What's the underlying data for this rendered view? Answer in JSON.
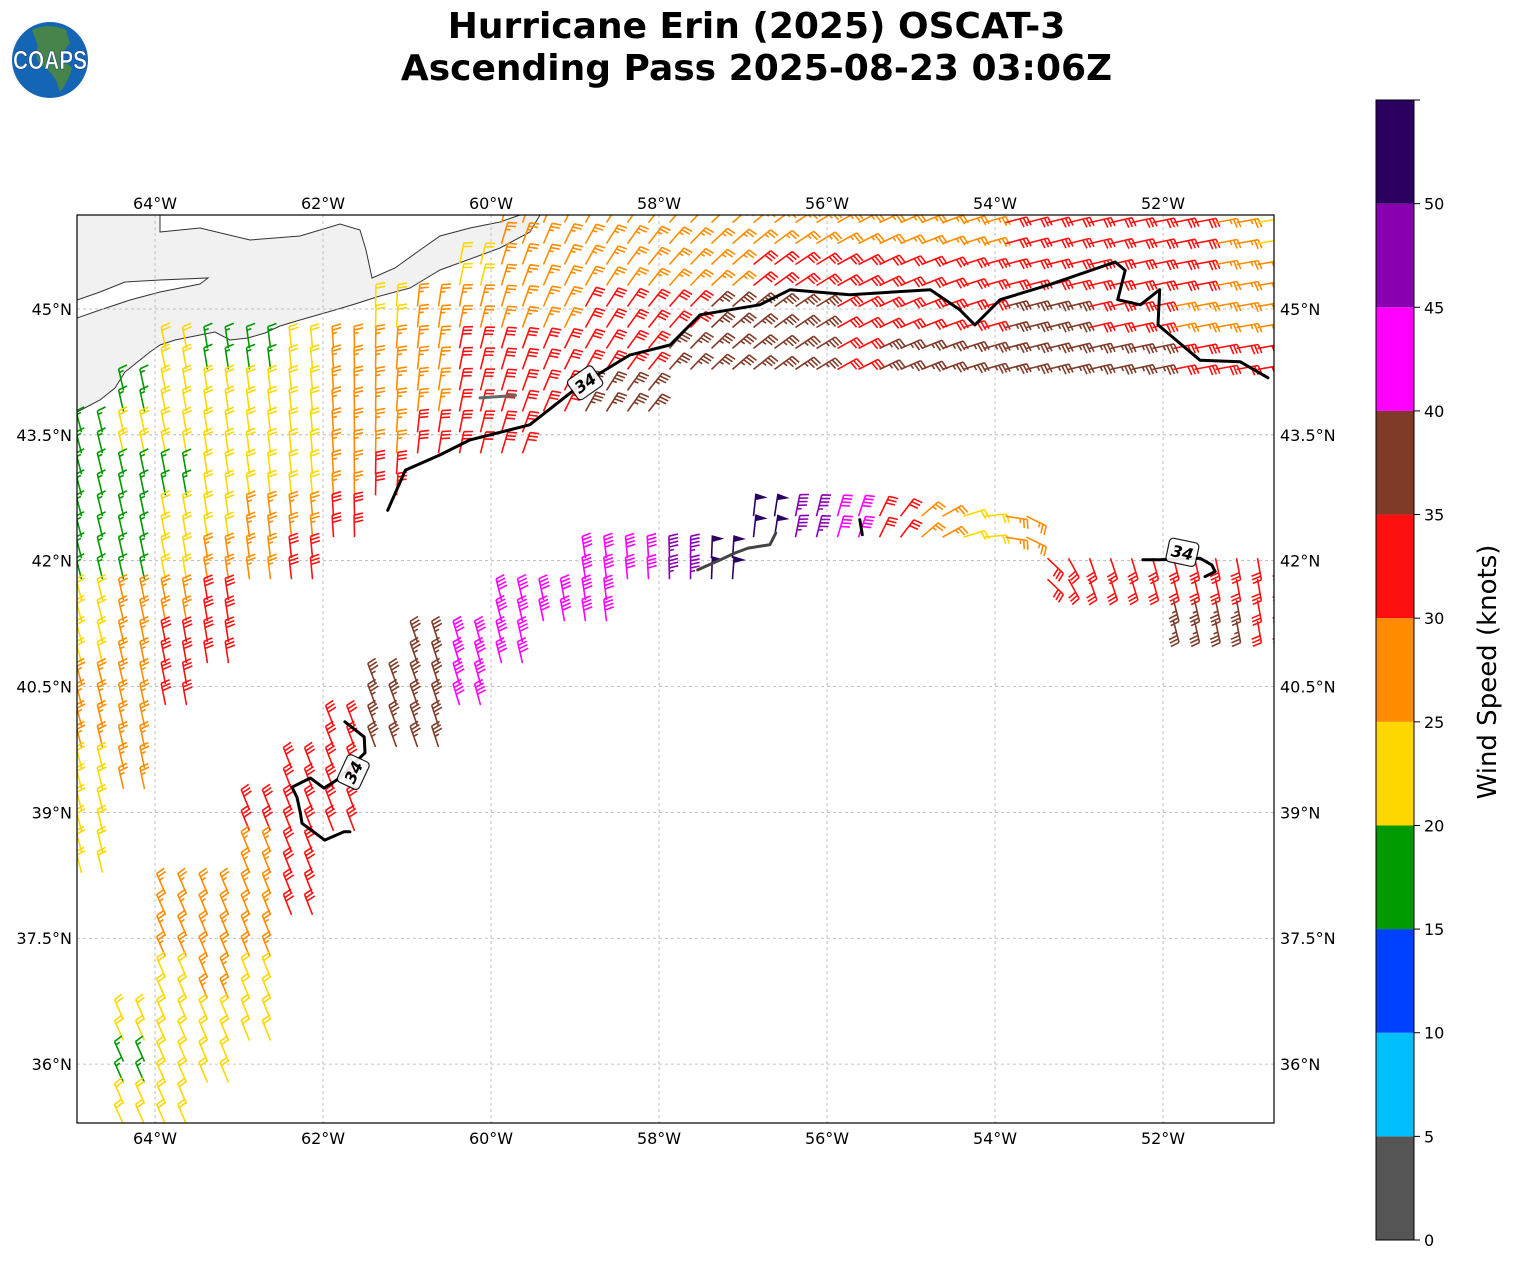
{
  "title": {
    "line1": "Hurricane Erin (2025) OSCAT-3",
    "line2": "Ascending Pass 2025-08-23 03:06Z"
  },
  "logo": {
    "text": "COAPS",
    "colors": {
      "ocean": "#1565b5",
      "land": "#4f8a3a"
    }
  },
  "map": {
    "lon_range": [
      -64.929,
      -50.679
    ],
    "lat_range": [
      35.298,
      46.12
    ],
    "lon_ticks": [
      -64,
      -62,
      -60,
      -58,
      -56,
      -54,
      -52
    ],
    "lon_tick_labels": [
      "64°W",
      "62°W",
      "60°W",
      "58°W",
      "56°W",
      "54°W",
      "52°W"
    ],
    "lat_ticks": [
      36,
      37.5,
      39,
      40.5,
      42,
      43.5,
      45
    ],
    "lat_tick_labels": [
      "36°N",
      "37.5°N",
      "39°N",
      "40.5°N",
      "42°N",
      "43.5°N",
      "45°N"
    ],
    "gridlines": true,
    "land_color": "#f1f1f1"
  },
  "colorbar": {
    "label": "Wind Speed (knots)",
    "bounds": [
      0,
      5,
      10,
      15,
      20,
      25,
      30,
      35,
      40,
      45,
      50,
      55
    ],
    "colors": [
      "#555555",
      "#00bfff",
      "#0040ff",
      "#009900",
      "#ffd700",
      "#ff8c00",
      "#ff1010",
      "#803b28",
      "#ff00ff",
      "#8800b0",
      "#2b0060"
    ],
    "ticks": [
      0,
      5,
      10,
      15,
      20,
      25,
      30,
      35,
      40,
      45,
      50
    ],
    "tick_labels": [
      "0",
      "5",
      "10",
      "15",
      "20",
      "25",
      "30",
      "35",
      "40",
      "45",
      "50"
    ]
  },
  "wind": {
    "grid_lat_start": 46.0,
    "grid_lat_step": -0.5,
    "grid_lon_start": -64.75,
    "grid_lon_step": 0.5,
    "upper_swath_rows": [
      "..........5555555555556666654",
      ".........45555556666666666655",
      ".......4555566677766667766555",
      "..433455566666777767777777666",
      ".3444455566677",
      "34444455666",
      "33344456",
      "3344556",
      "334556",
      "4556",
      "4566",
      "556",
      "55",
      "45",
      "4",
      "4",
      "",
      "",
      "",
      "",
      "",
      ""
    ],
    "lower_swath_rows": [
      "",
      "",
      "",
      "",
      "",
      "",
      "",
      "................a986545",
      "............889a.......666666",
      "..........888.............776",
      "........788",
      ".......778",
      "......677",
      ".....66",
      "....666",
      "....56",
      "..5556",
      "..555",
      "..454",
      ".4444",
      ".344",
      ".44"
    ],
    "upper_swath_dir": [
      [
        -65,
        345
      ],
      [
        -62,
        355
      ],
      [
        -60,
        15
      ],
      [
        -58,
        40
      ],
      [
        -56,
        60
      ],
      [
        -54,
        75
      ],
      [
        -51,
        80
      ]
    ],
    "lower_swath_dir": [
      [
        -65,
        335
      ],
      [
        -61,
        340
      ],
      [
        -59,
        350
      ],
      [
        -57,
        5
      ],
      [
        -55.5,
        20
      ],
      [
        -54,
        90
      ],
      [
        -53,
        160
      ],
      [
        -51,
        170
      ]
    ]
  },
  "contours": [
    {
      "level": 34,
      "color": "#000000",
      "label": "34",
      "label_at": [
        -58.88,
        44.12
      ],
      "points": [
        [
          -61.23,
          42.6
        ],
        [
          -61.02,
          43.08
        ],
        [
          -60.61,
          43.26
        ],
        [
          -60.25,
          43.44
        ],
        [
          -59.54,
          43.62
        ],
        [
          -58.94,
          44.09
        ],
        [
          -58.35,
          44.45
        ],
        [
          -57.87,
          44.57
        ],
        [
          -57.51,
          44.93
        ],
        [
          -56.8,
          45.05
        ],
        [
          -56.44,
          45.23
        ],
        [
          -55.73,
          45.17
        ],
        [
          -54.77,
          45.23
        ],
        [
          -54.42,
          44.99
        ],
        [
          -54.24,
          44.81
        ],
        [
          -53.94,
          45.11
        ],
        [
          -53.35,
          45.29
        ],
        [
          -52.57,
          45.56
        ],
        [
          -52.45,
          45.46
        ],
        [
          -52.54,
          45.11
        ],
        [
          -52.27,
          45.05
        ],
        [
          -52.04,
          45.23
        ],
        [
          -52.06,
          44.81
        ],
        [
          -51.56,
          44.39
        ],
        [
          -51.08,
          44.37
        ],
        [
          -50.75,
          44.18
        ]
      ]
    },
    {
      "level": 34,
      "color": "#000000",
      "label": "34",
      "label_at": [
        -61.64,
        39.48
      ],
      "points": [
        [
          -61.74,
          40.08
        ],
        [
          -61.51,
          39.9
        ],
        [
          -61.5,
          39.71
        ],
        [
          -61.83,
          39.39
        ],
        [
          -61.99,
          39.29
        ],
        [
          -62.15,
          39.41
        ],
        [
          -62.37,
          39.3
        ],
        [
          -62.31,
          39.18
        ],
        [
          -62.27,
          38.99
        ],
        [
          -62.25,
          38.87
        ],
        [
          -61.98,
          38.67
        ],
        [
          -61.75,
          38.77
        ],
        [
          -61.68,
          38.77
        ]
      ]
    },
    {
      "level": 34,
      "color": "#000000",
      "label": "34",
      "label_at": [
        -51.77,
        42.1
      ],
      "points": [
        [
          -52.24,
          42.01
        ],
        [
          -52.04,
          42.01
        ],
        [
          -51.56,
          42.03
        ],
        [
          -51.42,
          41.95
        ],
        [
          -51.38,
          41.87
        ],
        [
          -51.5,
          41.81
        ]
      ]
    },
    {
      "level": 34,
      "color": "#000000",
      "label": "",
      "points": [
        [
          -55.61,
          42.49
        ],
        [
          -55.58,
          42.31
        ]
      ]
    },
    {
      "level": 64,
      "color": "#444444",
      "label": "",
      "points": [
        [
          -57.54,
          41.89
        ],
        [
          -57.27,
          42.01
        ],
        [
          -57.1,
          42.09
        ],
        [
          -56.94,
          42.15
        ],
        [
          -56.68,
          42.19
        ],
        [
          -56.61,
          42.33
        ]
      ]
    },
    {
      "level": 64,
      "color": "#666666",
      "label": "",
      "points": [
        [
          -60.13,
          43.94
        ],
        [
          -59.71,
          43.97
        ]
      ]
    }
  ]
}
